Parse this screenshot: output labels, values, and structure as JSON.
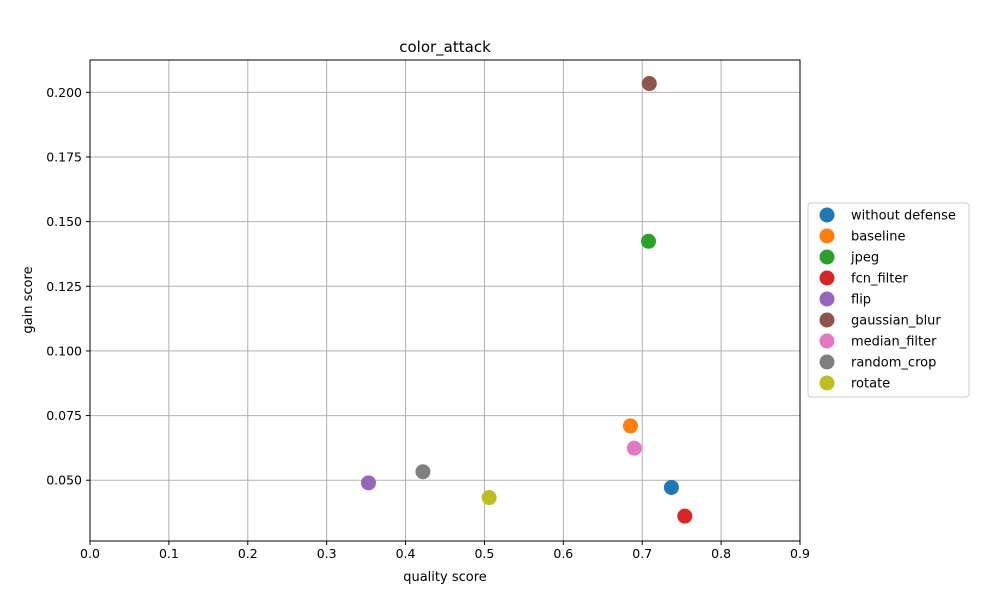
{
  "chart_data": {
    "type": "scatter",
    "title": "color_attack",
    "xlabel": "quality score",
    "ylabel": "gain score",
    "xlim": [
      0.0,
      0.9
    ],
    "ylim": [
      0.0265,
      0.2125
    ],
    "xticks": [
      "0.0",
      "0.1",
      "0.2",
      "0.3",
      "0.4",
      "0.5",
      "0.6",
      "0.7",
      "0.8",
      "0.9"
    ],
    "yticks": [
      "0.050",
      "0.075",
      "0.100",
      "0.125",
      "0.150",
      "0.175",
      "0.200"
    ],
    "grid": true,
    "legend_position": "outside-right",
    "series": [
      {
        "name": "without defense",
        "x": 0.737,
        "y": 0.0472,
        "color": "#1f77b4"
      },
      {
        "name": "baseline",
        "x": 0.685,
        "y": 0.071,
        "color": "#ff7f0e"
      },
      {
        "name": "jpeg",
        "x": 0.708,
        "y": 0.1424,
        "color": "#2ca02c"
      },
      {
        "name": "fcn_filter",
        "x": 0.754,
        "y": 0.0361,
        "color": "#d62728"
      },
      {
        "name": "flip",
        "x": 0.353,
        "y": 0.049,
        "color": "#9467bd"
      },
      {
        "name": "gaussian_blur",
        "x": 0.709,
        "y": 0.2034,
        "color": "#8c564b"
      },
      {
        "name": "median_filter",
        "x": 0.69,
        "y": 0.0624,
        "color": "#e377c2"
      },
      {
        "name": "random_crop",
        "x": 0.422,
        "y": 0.0533,
        "color": "#7f7f7f"
      },
      {
        "name": "rotate",
        "x": 0.506,
        "y": 0.0433,
        "color": "#bcbd22"
      }
    ]
  }
}
